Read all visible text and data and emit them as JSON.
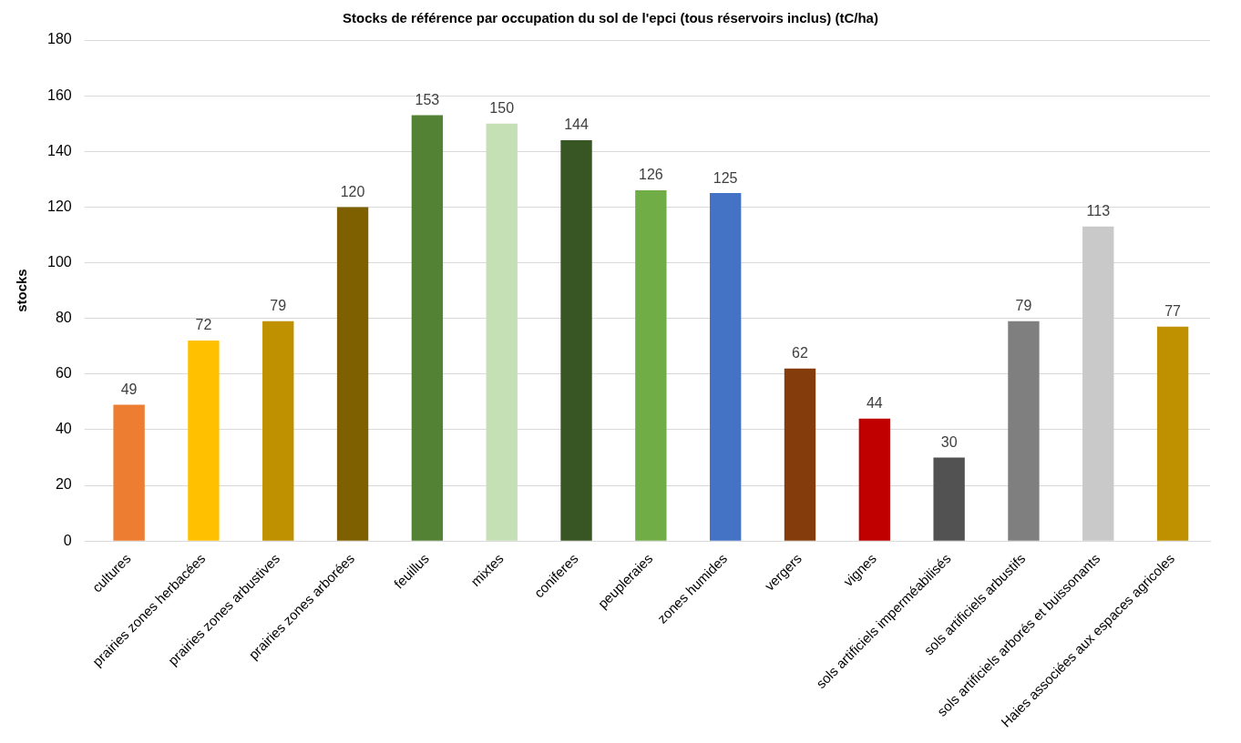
{
  "chart_data": {
    "type": "bar",
    "title": "Stocks de référence par occupation du sol de l'epci (tous réservoirs inclus) (tC/ha)",
    "ylabel": "stocks",
    "categories": [
      "cultures",
      "prairies zones herbacées",
      "prairies zones arbustives",
      "prairies zones arborées",
      "feuillus",
      "mixtes",
      "coniferes",
      "peupleraies",
      "zones humides",
      "vergers",
      "vignes",
      "sols artificiels imperméabilisés",
      "sols artificiels arbustifs",
      "sols artificiels arborés et buissonants",
      "Haies associées aux espaces agricoles"
    ],
    "values": [
      49,
      72,
      79,
      120,
      153,
      150,
      144,
      126,
      125,
      62,
      44,
      30,
      79,
      113,
      77
    ],
    "colors": [
      "#ed7d31",
      "#ffc000",
      "#bf9000",
      "#7f6000",
      "#548235",
      "#c5e0b4",
      "#375623",
      "#70ad47",
      "#4472c4",
      "#843c0c",
      "#c00000",
      "#525252",
      "#7f7f7f",
      "#c9c9c9",
      "#bf9000"
    ],
    "ylim": [
      0,
      180
    ],
    "yticks": [
      0,
      20,
      40,
      60,
      80,
      100,
      120,
      140,
      160,
      180
    ],
    "grid": "y",
    "data_labels": true,
    "legend": false
  }
}
